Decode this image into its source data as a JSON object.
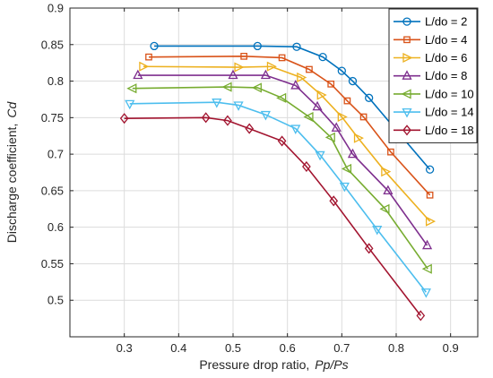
{
  "chart_data": {
    "type": "line",
    "xlabel": "Pressure drop ratio,",
    "xlabel_var": "Pp/Ps",
    "ylabel": "Discharge coefficient,",
    "ylabel_var": "Cd",
    "xlim": [
      0.2,
      0.95
    ],
    "ylim": [
      0.45,
      0.9
    ],
    "xticks": [
      0.3,
      0.4,
      0.5,
      0.6,
      0.7,
      0.8,
      0.9
    ],
    "xtick_labels": [
      "0.3",
      "0.4",
      "0.5",
      "0.6",
      "0.7",
      "0.8",
      "0.9"
    ],
    "yticks": [
      0.5,
      0.55,
      0.6,
      0.65,
      0.7,
      0.75,
      0.8,
      0.85,
      0.9
    ],
    "ytick_labels": [
      "0.5",
      "0.55",
      "0.6",
      "0.65",
      "0.7",
      "0.75",
      "0.8",
      "0.85",
      "0.9"
    ],
    "grid": true,
    "legend_position": "top-right",
    "series": [
      {
        "name": "L/do = 2",
        "color": "#0072BD",
        "marker": "circle",
        "x": [
          0.355,
          0.545,
          0.617,
          0.665,
          0.7,
          0.72,
          0.75,
          0.8,
          0.862
        ],
        "y": [
          0.848,
          0.848,
          0.847,
          0.833,
          0.814,
          0.8,
          0.777,
          0.733,
          0.679
        ]
      },
      {
        "name": "L/do = 4",
        "color": "#D95319",
        "marker": "square",
        "x": [
          0.345,
          0.52,
          0.59,
          0.64,
          0.68,
          0.71,
          0.74,
          0.79,
          0.862
        ],
        "y": [
          0.833,
          0.834,
          0.832,
          0.816,
          0.796,
          0.773,
          0.751,
          0.703,
          0.644
        ]
      },
      {
        "name": "L/do = 6",
        "color": "#EDB120",
        "marker": "triangle-right",
        "x": [
          0.335,
          0.51,
          0.57,
          0.625,
          0.662,
          0.7,
          0.73,
          0.78,
          0.862
        ],
        "y": [
          0.82,
          0.819,
          0.82,
          0.805,
          0.781,
          0.751,
          0.722,
          0.676,
          0.608
        ]
      },
      {
        "name": "L/do = 8",
        "color": "#7E2F8E",
        "marker": "triangle-up",
        "x": [
          0.325,
          0.5,
          0.56,
          0.615,
          0.655,
          0.69,
          0.72,
          0.785,
          0.857
        ],
        "y": [
          0.808,
          0.808,
          0.808,
          0.794,
          0.765,
          0.736,
          0.7,
          0.65,
          0.575
        ]
      },
      {
        "name": "L/do = 10",
        "color": "#77AC30",
        "marker": "triangle-left",
        "x": [
          0.315,
          0.49,
          0.545,
          0.59,
          0.64,
          0.68,
          0.71,
          0.78,
          0.858
        ],
        "y": [
          0.79,
          0.792,
          0.791,
          0.777,
          0.751,
          0.723,
          0.68,
          0.625,
          0.543
        ]
      },
      {
        "name": "L/do = 14",
        "color": "#4DBEEE",
        "marker": "triangle-down",
        "x": [
          0.31,
          0.47,
          0.51,
          0.56,
          0.615,
          0.66,
          0.705,
          0.765,
          0.855
        ],
        "y": [
          0.769,
          0.771,
          0.767,
          0.754,
          0.735,
          0.699,
          0.656,
          0.597,
          0.511
        ]
      },
      {
        "name": "L/do = 18",
        "color": "#A2142F",
        "marker": "diamond",
        "x": [
          0.3,
          0.45,
          0.49,
          0.53,
          0.59,
          0.635,
          0.685,
          0.75,
          0.845
        ],
        "y": [
          0.749,
          0.75,
          0.746,
          0.735,
          0.718,
          0.683,
          0.636,
          0.571,
          0.479
        ]
      }
    ]
  }
}
